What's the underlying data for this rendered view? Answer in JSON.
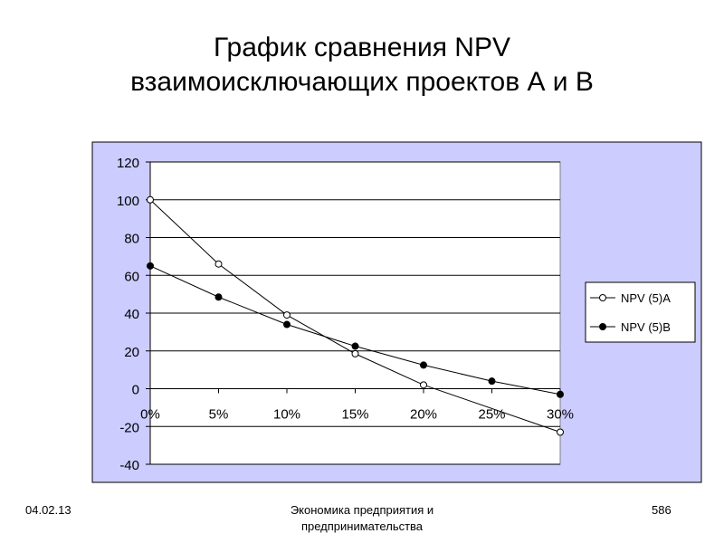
{
  "slide": {
    "title_line1": "График сравнения NPV",
    "title_line2": "взаимоисключающих проектов А и В"
  },
  "footer": {
    "date": "04.02.13",
    "center_line1": "Экономика предприятия и",
    "center_line2": "предпринимательства",
    "page": "586"
  },
  "chart_data": {
    "type": "line",
    "categories": [
      "0%",
      "5%",
      "10%",
      "15%",
      "20%",
      "25%",
      "30%"
    ],
    "series": [
      {
        "name": "NPV (5)A",
        "values": [
          100,
          66,
          39,
          18.5,
          2,
          null,
          -23
        ],
        "marker": "open-circle"
      },
      {
        "name": "NPV (5)B",
        "values": [
          65,
          48.5,
          34,
          22.5,
          12.5,
          4,
          -3
        ],
        "marker": "filled-circle"
      }
    ],
    "y_ticks": [
      120,
      100,
      80,
      60,
      40,
      20,
      0,
      -20,
      -40
    ],
    "ylim": [
      -40,
      120
    ],
    "grid": "horizontal",
    "legend_position": "right",
    "colors": {
      "outer_background": "#ccccff",
      "plot_background": "#ffffff",
      "line": "#000000",
      "grid": "#000000"
    }
  }
}
